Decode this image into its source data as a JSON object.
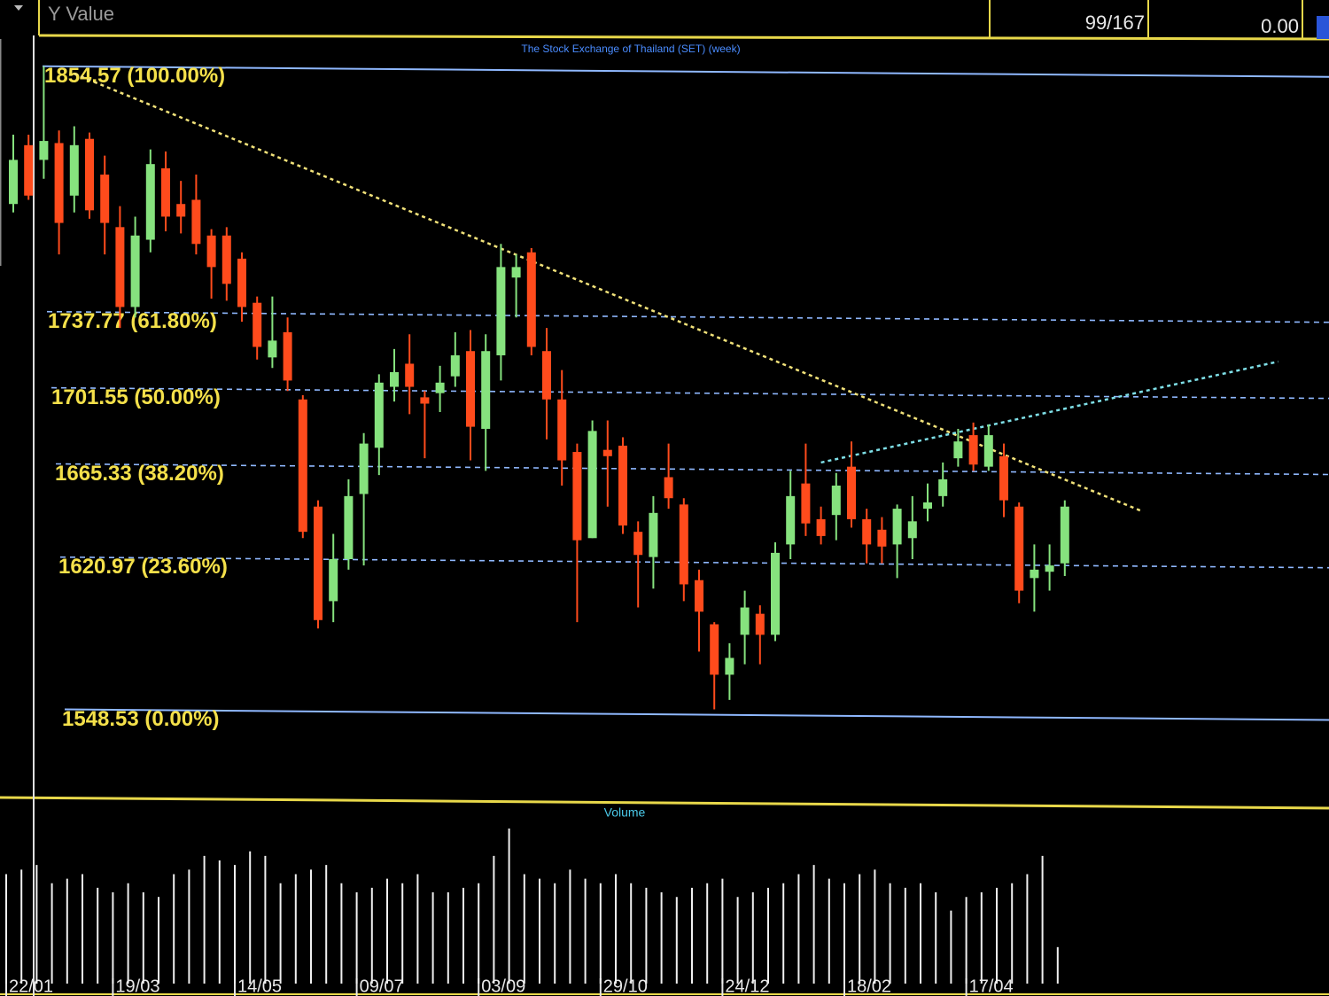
{
  "header": {
    "field": "Y Value",
    "counter": "99/167",
    "value": "0.00"
  },
  "chart_data": {
    "type": "candlestick",
    "title": "The Stock Exchange of Thailand (SET) (week)",
    "categories": [
      "22/01",
      null,
      null,
      null,
      null,
      null,
      null,
      "19/03",
      null,
      null,
      null,
      null,
      null,
      null,
      null,
      "14/05",
      null,
      null,
      null,
      null,
      null,
      null,
      null,
      "09/07",
      null,
      null,
      null,
      null,
      null,
      null,
      null,
      "03/09",
      null,
      null,
      null,
      null,
      null,
      null,
      null,
      "29/10",
      null,
      null,
      null,
      null,
      null,
      null,
      null,
      "24/12",
      null,
      null,
      null,
      null,
      null,
      null,
      null,
      "18/02",
      null,
      null,
      null,
      null,
      null,
      null,
      null,
      "17/04",
      null,
      null,
      null,
      null,
      null,
      null
    ],
    "open": [
      1789,
      1817,
      1810,
      1818,
      1793,
      1820,
      1803,
      1778,
      1740,
      1772,
      1806,
      1789,
      1791,
      1774,
      1774,
      1763,
      1742,
      1716,
      1728,
      1696,
      1645,
      1600,
      1620,
      1651,
      1673,
      1702,
      1713,
      1697,
      1699,
      1707,
      1719,
      1682,
      1717,
      1754,
      1766,
      1719,
      1696,
      1671,
      1630,
      1672,
      1674,
      1633,
      1621,
      1659,
      1646,
      1610,
      1589,
      1565,
      1584,
      1594,
      1584,
      1627,
      1656,
      1639,
      1641,
      1664,
      1639,
      1634,
      1627,
      1630,
      1644,
      1650,
      1668,
      1679,
      1664,
      1669,
      1645,
      1611,
      1614,
      1618
    ],
    "high": [
      1822,
      1822,
      1854.57,
      1824,
      1826,
      1823,
      1812,
      1788,
      1783,
      1815,
      1814,
      1800,
      1803,
      1777,
      1778,
      1766,
      1745,
      1745,
      1735,
      1698,
      1648,
      1632,
      1658,
      1680,
      1708,
      1720,
      1727,
      1700,
      1712,
      1728,
      1729,
      1727,
      1770,
      1765,
      1768,
      1730,
      1710,
      1675,
      1686,
      1686,
      1678,
      1638,
      1650,
      1675,
      1649,
      1615,
      1590,
      1580,
      1605,
      1598,
      1628,
      1662,
      1675,
      1645,
      1661,
      1676,
      1644,
      1640,
      1646,
      1650,
      1656,
      1666,
      1682,
      1685,
      1684,
      1675,
      1647,
      1627,
      1627,
      1648
    ],
    "low": [
      1785,
      1791,
      1801,
      1765,
      1785,
      1782,
      1765,
      1730,
      1735,
      1766,
      1776,
      1775,
      1765,
      1744,
      1743,
      1733,
      1715,
      1711,
      1700,
      1630,
      1587,
      1590,
      1615,
      1617,
      1660,
      1695,
      1689,
      1668,
      1690,
      1702,
      1667,
      1662,
      1705,
      1735,
      1717,
      1677,
      1655,
      1590,
      1630,
      1645,
      1632,
      1597,
      1606,
      1644,
      1600,
      1576,
      1548.53,
      1553,
      1570,
      1570,
      1581,
      1620,
      1631,
      1627,
      1629,
      1635,
      1618,
      1618,
      1611,
      1620,
      1638,
      1645,
      1664,
      1662,
      1662,
      1640,
      1599,
      1595,
      1605,
      1612
    ],
    "close": [
      1810,
      1793,
      1819,
      1780,
      1817,
      1786,
      1780,
      1740,
      1774,
      1808,
      1783,
      1783,
      1770,
      1759,
      1751,
      1740,
      1721,
      1724,
      1705,
      1633,
      1591,
      1620,
      1650,
      1675,
      1704,
      1709,
      1702,
      1694,
      1704,
      1717,
      1683,
      1719,
      1759,
      1759,
      1721,
      1696,
      1667,
      1629,
      1681,
      1669,
      1636,
      1622,
      1642,
      1649,
      1608,
      1595,
      1565,
      1573,
      1597,
      1584,
      1623,
      1650,
      1637,
      1631,
      1655,
      1639,
      1627,
      1626,
      1644,
      1638,
      1647,
      1658,
      1676,
      1665,
      1679,
      1648,
      1605,
      1615,
      1617,
      1645
    ],
    "up_color": "#86e27e",
    "down_color": "#ff4b1c",
    "ylim": [
      1515,
      1865
    ],
    "levels": [
      {
        "value": 1854.57,
        "label": "1854.57 (100.00%)"
      },
      {
        "value": 1737.77,
        "label": "1737.77 (61.80%)"
      },
      {
        "value": 1701.55,
        "label": "1701.55 (50.00%)"
      },
      {
        "value": 1665.33,
        "label": "1665.33 (38.20%)"
      },
      {
        "value": 1620.97,
        "label": "1620.97 (23.60%)"
      },
      {
        "value": 1548.53,
        "label": "1548.53 (0.00%)"
      }
    ],
    "level_color": "#8fb8ff",
    "trendlines": [
      {
        "color": "#f2e27a",
        "from": [
          4,
          1851
        ],
        "to": [
          74,
          1643
        ]
      },
      {
        "color": "#7fe0e8",
        "from": [
          53,
          1666
        ],
        "to": [
          83,
          1714
        ]
      }
    ],
    "volume_title": "Volume",
    "volume": [
      120,
      125,
      130,
      110,
      115,
      120,
      105,
      100,
      110,
      100,
      95,
      120,
      125,
      140,
      135,
      130,
      145,
      140,
      110,
      120,
      125,
      130,
      110,
      100,
      105,
      115,
      110,
      120,
      100,
      100,
      105,
      110,
      140,
      170,
      120,
      115,
      110,
      125,
      115,
      110,
      120,
      110,
      105,
      100,
      95,
      105,
      110,
      115,
      95,
      100,
      105,
      110,
      120,
      130,
      115,
      110,
      120,
      125,
      110,
      105,
      110,
      100,
      80,
      95,
      100,
      105,
      110,
      120,
      140,
      40
    ],
    "volume_color": "#f0f0f0"
  }
}
